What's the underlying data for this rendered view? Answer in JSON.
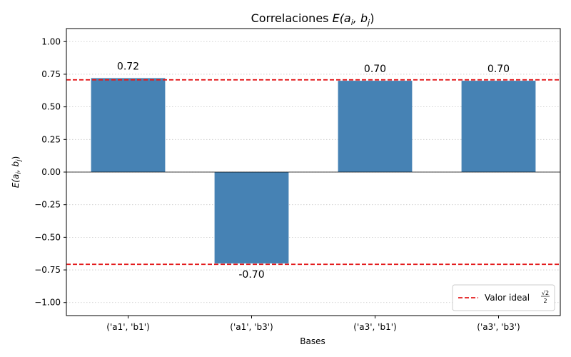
{
  "chart_data": {
    "type": "bar",
    "title_plain": "Correlaciones ",
    "title_math": "E(a",
    "title_sub_i": "i",
    "title_mid": ", b",
    "title_sub_j": "j",
    "title_close": ")",
    "xlabel": "Bases",
    "ylabel_math": "E(a",
    "ylabel_sub_i": "i",
    "ylabel_mid": ", b",
    "ylabel_sub_j": "j",
    "ylabel_close": ")",
    "categories": [
      "('a1', 'b1')",
      "('a1', 'b3')",
      "('a3', 'b1')",
      "('a3', 'b3')"
    ],
    "values": [
      0.72,
      -0.7,
      0.7,
      0.7
    ],
    "value_labels": [
      "0.72",
      "-0.70",
      "0.70",
      "0.70"
    ],
    "ylim": [
      -1.1,
      1.1
    ],
    "yticks": [
      1.0,
      0.75,
      0.5,
      0.25,
      0.0,
      -0.25,
      -0.5,
      -0.75,
      -1.0
    ],
    "ytick_labels": [
      "1.00",
      "0.75",
      "0.50",
      "0.25",
      "0.00",
      "−0.25",
      "−0.50",
      "−0.75",
      "−1.00"
    ],
    "reference_lines": [
      0.7071,
      -0.7071
    ],
    "grid": "horizontal dotted",
    "legend": {
      "label_text": "Valor ideal ",
      "label_frac_num": "√2",
      "label_frac_den": "2",
      "placement": "lower-right"
    },
    "colors": {
      "bar": "#4682b4",
      "reference": "#e31a1c",
      "grid": "#c8c8c8"
    }
  }
}
